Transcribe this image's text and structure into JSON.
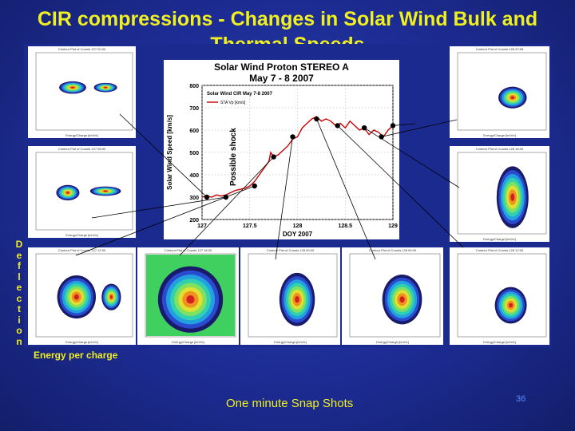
{
  "slide": {
    "title": "CIR compressions - Changes in Solar Wind Bulk and Thermal Speeds",
    "deflection_label": "Deflection",
    "energy_label": "Energy per charge",
    "footer": "One minute Snap Shots",
    "page_number": "36"
  },
  "colors": {
    "background": "#1c2a8c",
    "title": "#f0f020",
    "series": "#cc0000"
  },
  "chart_data": {
    "type": "line",
    "title": "Solar Wind Proton STEREO A",
    "subtitle": "May 7 - 8 2007",
    "xlabel": "DOY 2007",
    "ylabel": "Solar Wind Speed [km/s]",
    "xlim": [
      127,
      129
    ],
    "ylim": [
      200,
      800
    ],
    "xticks": [
      127,
      127.5,
      128,
      128.5,
      129
    ],
    "yticks": [
      200,
      300,
      400,
      500,
      600,
      700,
      800
    ],
    "inner_title": "Solar Wind CIR May 7-8 2007",
    "annotation": "Possible shock",
    "series": [
      {
        "name": "STA Vp [km/s]",
        "x": [
          127.0,
          127.05,
          127.1,
          127.15,
          127.2,
          127.25,
          127.3,
          127.35,
          127.4,
          127.45,
          127.5,
          127.55,
          127.6,
          127.65,
          127.7,
          127.72,
          127.75,
          127.8,
          127.85,
          127.9,
          127.95,
          128.0,
          128.05,
          128.1,
          128.15,
          128.2,
          128.25,
          128.3,
          128.35,
          128.4,
          128.45,
          128.5,
          128.55,
          128.6,
          128.65,
          128.7,
          128.75,
          128.8,
          128.85,
          128.9,
          128.95,
          129.0
        ],
        "values": [
          300,
          305,
          300,
          310,
          305,
          310,
          320,
          330,
          335,
          340,
          350,
          370,
          400,
          430,
          460,
          500,
          480,
          490,
          510,
          530,
          560,
          570,
          610,
          630,
          650,
          660,
          640,
          650,
          640,
          620,
          630,
          610,
          640,
          620,
          600,
          610,
          580,
          600,
          590,
          570,
          600,
          620
        ]
      }
    ],
    "markers": {
      "x": [
        127.05,
        127.25,
        127.55,
        127.75,
        127.95,
        128.2,
        128.42,
        128.7,
        128.88,
        129.0
      ],
      "values": [
        300,
        300,
        350,
        480,
        570,
        650,
        620,
        610,
        570,
        620
      ]
    }
  },
  "snapshots": [
    {
      "label": "Contour Plot of Counts 127 00:00",
      "xlabel": "Energy/Charge [keV/e]"
    },
    {
      "label": "Contour Plot of Counts 127 06:00",
      "xlabel": "Energy/Charge [keV/e]"
    },
    {
      "label": "Contour Plot of Counts 127 12:00",
      "xlabel": "Energy/Charge [keV/e]"
    },
    {
      "label": "Contour Plot of Counts 127 18:00",
      "xlabel": "Energy/Charge [keV/e]"
    },
    {
      "label": "Contour Plot of Counts 128 00:00",
      "xlabel": "Energy/Charge [keV/e]"
    },
    {
      "label": "Contour Plot of Counts 128 06:00",
      "xlabel": "Energy/Charge [keV/e]"
    },
    {
      "label": "Contour Plot of Counts 128 12:00",
      "xlabel": "Energy/Charge [keV/e]"
    },
    {
      "label": "Contour Plot of Counts 128 18:00",
      "xlabel": "Energy/Charge [keV/e]"
    },
    {
      "label": "Contour Plot of Counts 128 23:59",
      "xlabel": "Energy/Charge [keV/e]"
    }
  ]
}
